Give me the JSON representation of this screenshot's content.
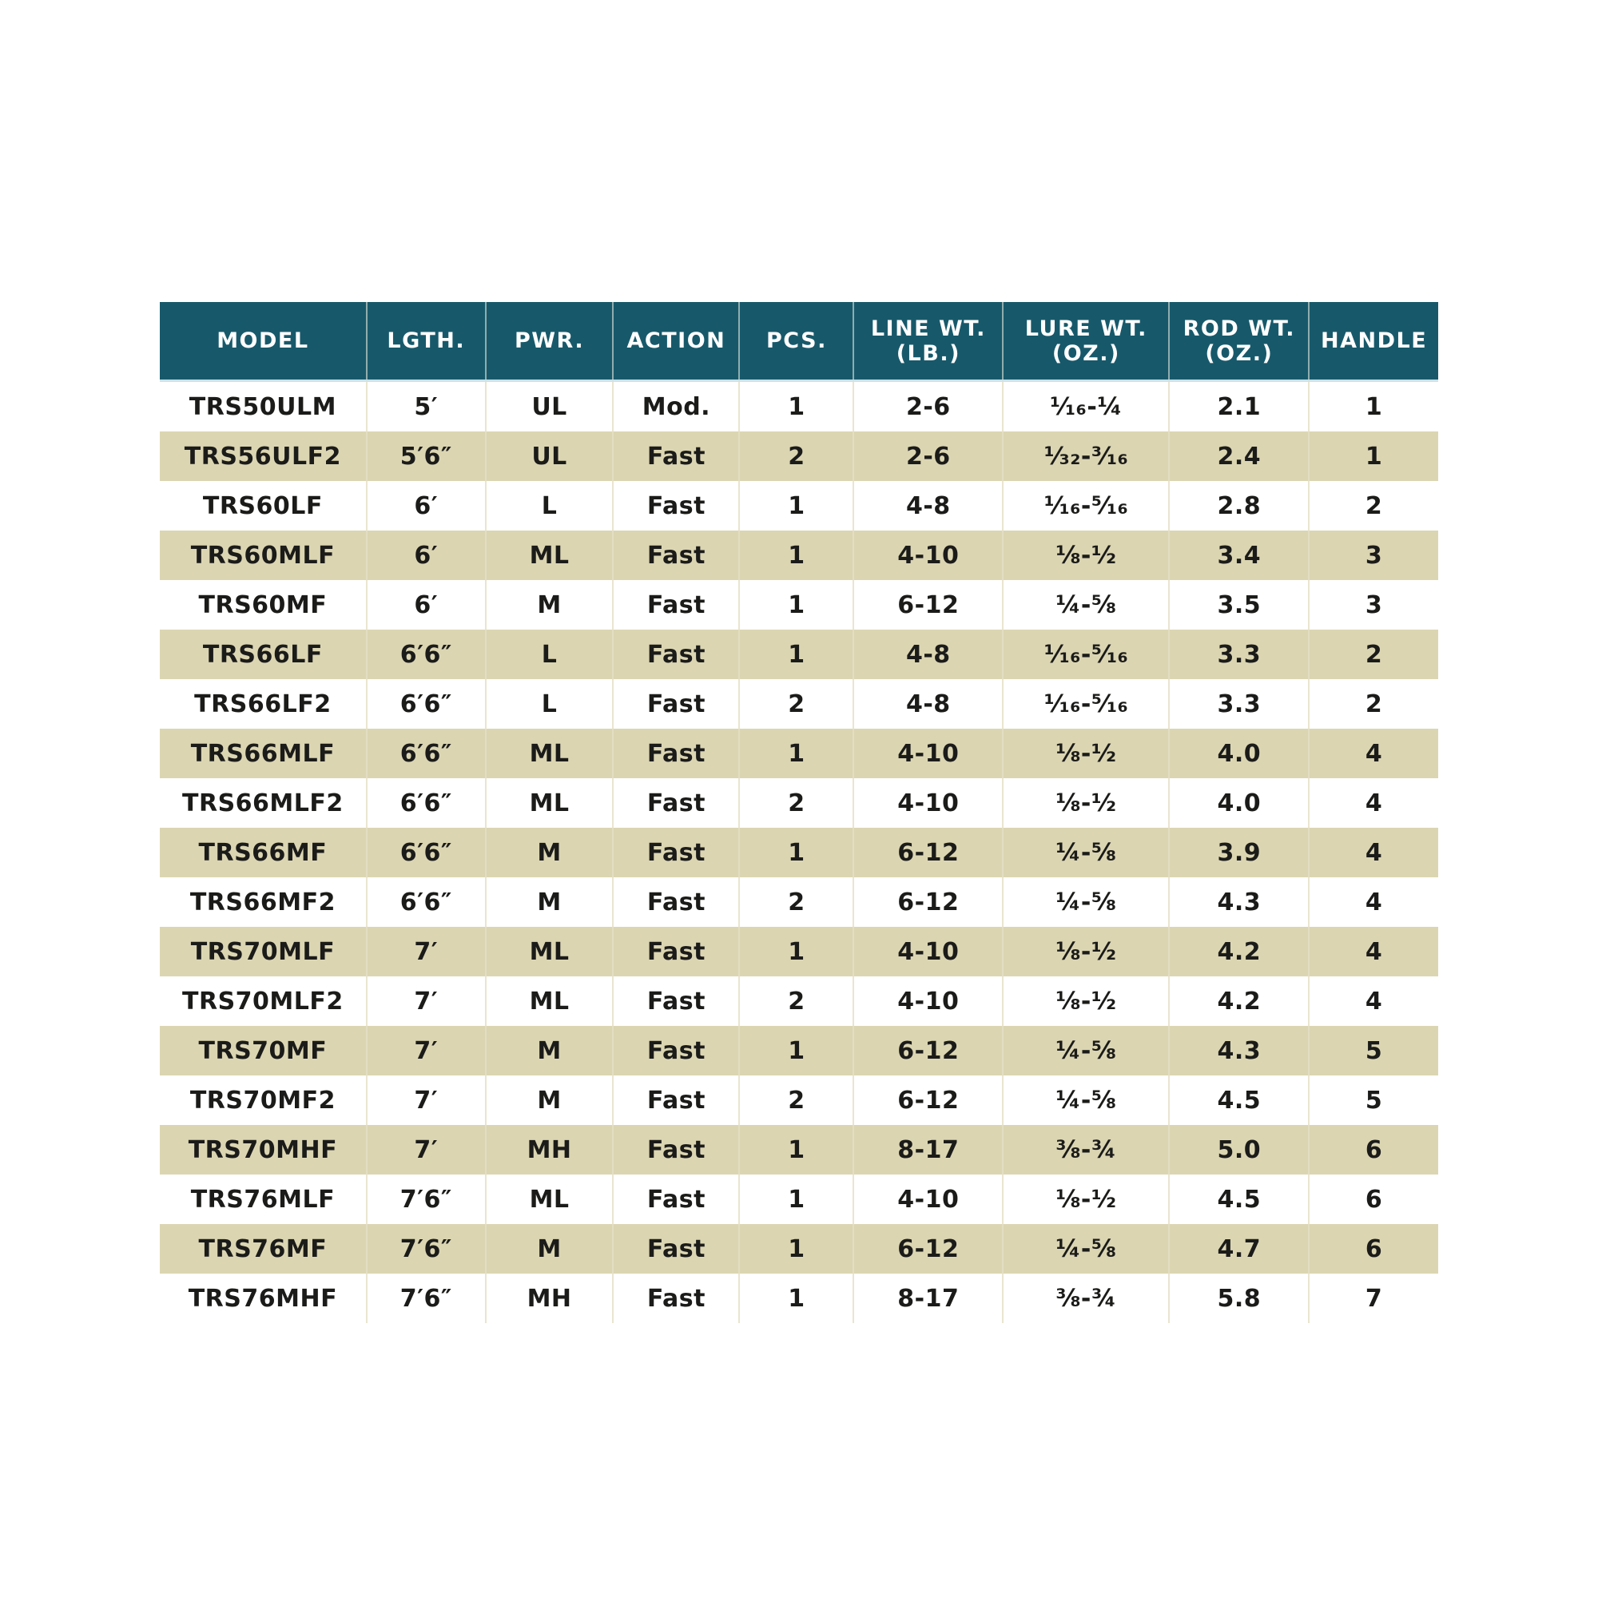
{
  "colors": {
    "header_bg": "#17596B",
    "header_text": "#FFFFFF",
    "stripe_bg": "#DBD5B2",
    "row_bg": "#FFFFFF",
    "body_text": "#1B1B19"
  },
  "chart_data": {
    "type": "table",
    "title": "",
    "columns": [
      "MODEL",
      "LGTH.",
      "PWR.",
      "ACTION",
      "PCS.",
      "LINE WT.\n(LB.)",
      "LURE WT.\n(OZ.)",
      "ROD WT.\n(OZ.)",
      "HANDLE"
    ],
    "rows": [
      [
        "TRS50ULM",
        "5′",
        "UL",
        "Mod.",
        "1",
        "2-6",
        "¹⁄₁₆-¼",
        "2.1",
        "1"
      ],
      [
        "TRS56ULF2",
        "5′6″",
        "UL",
        "Fast",
        "2",
        "2-6",
        "¹⁄₃₂-³⁄₁₆",
        "2.4",
        "1"
      ],
      [
        "TRS60LF",
        "6′",
        "L",
        "Fast",
        "1",
        "4-8",
        "¹⁄₁₆-⁵⁄₁₆",
        "2.8",
        "2"
      ],
      [
        "TRS60MLF",
        "6′",
        "ML",
        "Fast",
        "1",
        "4-10",
        "⅛-½",
        "3.4",
        "3"
      ],
      [
        "TRS60MF",
        "6′",
        "M",
        "Fast",
        "1",
        "6-12",
        "¼-⅝",
        "3.5",
        "3"
      ],
      [
        "TRS66LF",
        "6′6″",
        "L",
        "Fast",
        "1",
        "4-8",
        "¹⁄₁₆-⁵⁄₁₆",
        "3.3",
        "2"
      ],
      [
        "TRS66LF2",
        "6′6″",
        "L",
        "Fast",
        "2",
        "4-8",
        "¹⁄₁₆-⁵⁄₁₆",
        "3.3",
        "2"
      ],
      [
        "TRS66MLF",
        "6′6″",
        "ML",
        "Fast",
        "1",
        "4-10",
        "⅛-½",
        "4.0",
        "4"
      ],
      [
        "TRS66MLF2",
        "6′6″",
        "ML",
        "Fast",
        "2",
        "4-10",
        "⅛-½",
        "4.0",
        "4"
      ],
      [
        "TRS66MF",
        "6′6″",
        "M",
        "Fast",
        "1",
        "6-12",
        "¼-⅝",
        "3.9",
        "4"
      ],
      [
        "TRS66MF2",
        "6′6″",
        "M",
        "Fast",
        "2",
        "6-12",
        "¼-⅝",
        "4.3",
        "4"
      ],
      [
        "TRS70MLF",
        "7′",
        "ML",
        "Fast",
        "1",
        "4-10",
        "⅛-½",
        "4.2",
        "4"
      ],
      [
        "TRS70MLF2",
        "7′",
        "ML",
        "Fast",
        "2",
        "4-10",
        "⅛-½",
        "4.2",
        "4"
      ],
      [
        "TRS70MF",
        "7′",
        "M",
        "Fast",
        "1",
        "6-12",
        "¼-⅝",
        "4.3",
        "5"
      ],
      [
        "TRS70MF2",
        "7′",
        "M",
        "Fast",
        "2",
        "6-12",
        "¼-⅝",
        "4.5",
        "5"
      ],
      [
        "TRS70MHF",
        "7′",
        "MH",
        "Fast",
        "1",
        "8-17",
        "⅜-¾",
        "5.0",
        "6"
      ],
      [
        "TRS76MLF",
        "7′6″",
        "ML",
        "Fast",
        "1",
        "4-10",
        "⅛-½",
        "4.5",
        "6"
      ],
      [
        "TRS76MF",
        "7′6″",
        "M",
        "Fast",
        "1",
        "6-12",
        "¼-⅝",
        "4.7",
        "6"
      ],
      [
        "TRS76MHF",
        "7′6″",
        "MH",
        "Fast",
        "1",
        "8-17",
        "⅜-¾",
        "5.8",
        "7"
      ]
    ]
  }
}
